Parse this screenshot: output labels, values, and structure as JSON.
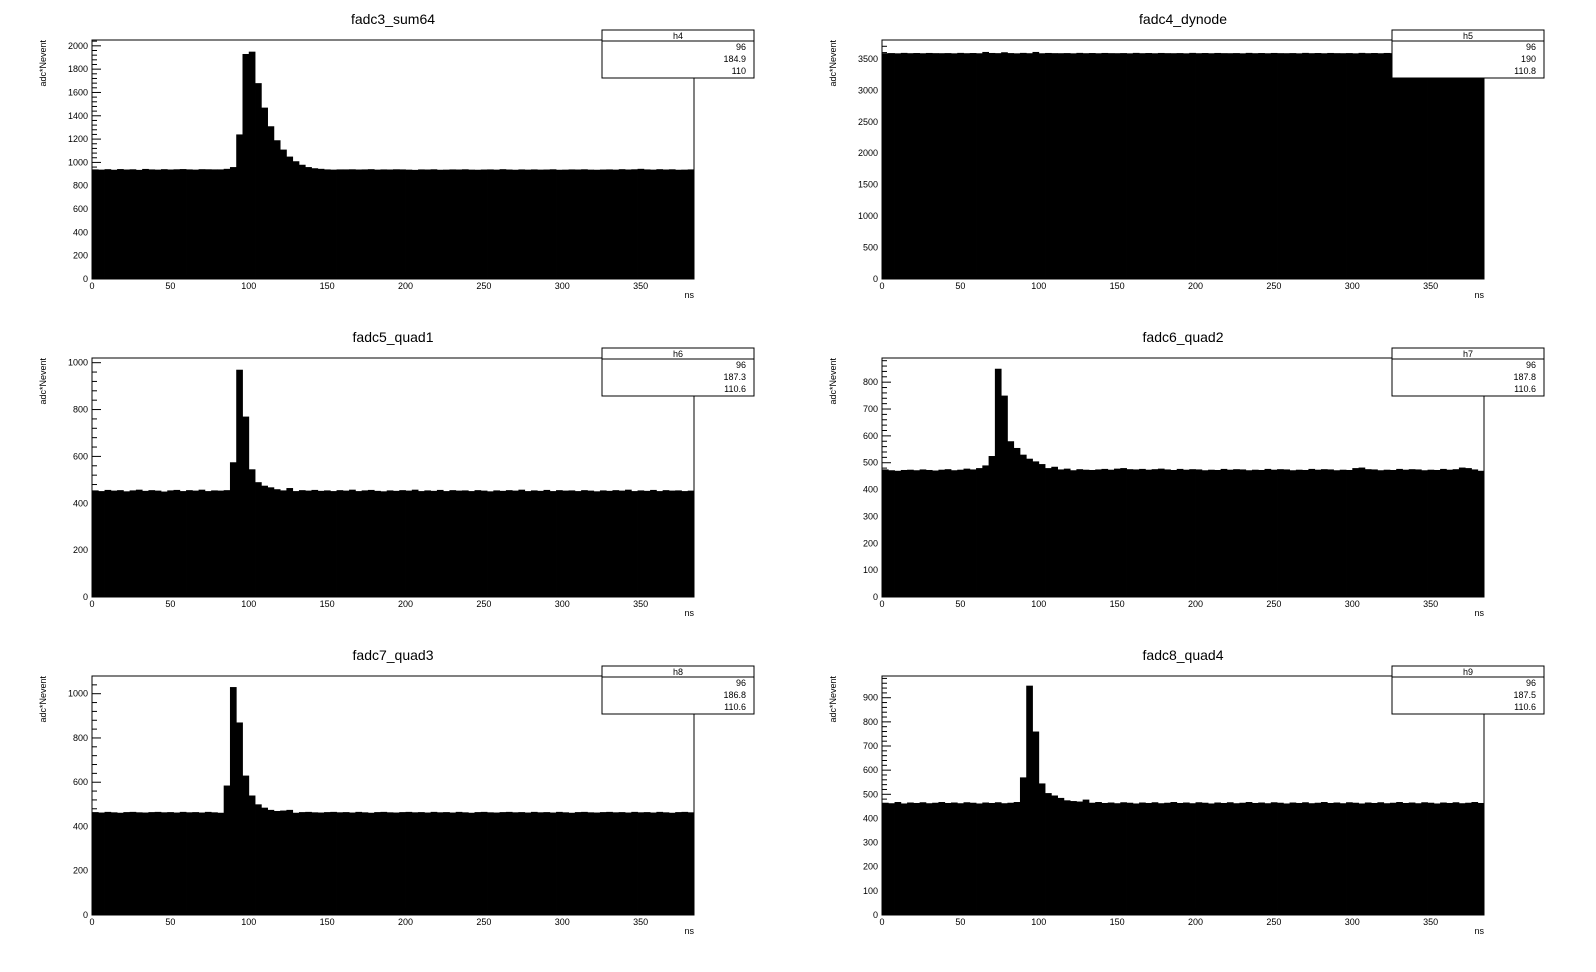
{
  "colors": {
    "fill": "#000000",
    "frame": "#000000",
    "background": "#ffffff"
  },
  "chart_data": [
    {
      "type": "bar",
      "title": "fadc3_sum64",
      "xlabel": "ns",
      "ylabel": "adc*Nevent",
      "xlim": [
        0,
        384
      ],
      "ylim": [
        0,
        2050
      ],
      "xticks": [
        0,
        50,
        100,
        150,
        200,
        250,
        300,
        350
      ],
      "yticks": [
        0,
        200,
        400,
        600,
        800,
        1000,
        1200,
        1400,
        1600,
        1800,
        2000
      ],
      "bin_width": 4,
      "stats": {
        "name": "h4",
        "entries": "96",
        "mean": "184.9",
        "std_dev": "110"
      },
      "values": [
        940,
        938,
        942,
        937,
        943,
        939,
        941,
        936,
        944,
        940,
        938,
        942,
        939,
        941,
        943,
        940,
        938,
        942,
        941,
        940,
        940,
        945,
        960,
        1240,
        1930,
        1950,
        1680,
        1470,
        1310,
        1190,
        1110,
        1050,
        1010,
        980,
        960,
        950,
        945,
        940,
        938,
        940,
        940,
        941,
        939,
        940,
        942,
        938,
        940,
        939,
        941,
        940,
        938,
        936,
        940,
        939,
        941,
        937,
        938,
        940,
        939,
        941,
        938,
        937,
        939,
        940,
        938,
        942,
        939,
        937,
        940,
        938,
        940,
        938,
        939,
        941,
        937,
        938,
        940,
        939,
        941,
        938,
        937,
        939,
        940,
        938,
        942,
        939,
        941,
        945,
        940,
        938,
        942,
        939,
        941,
        937,
        938,
        940
      ]
    },
    {
      "type": "bar",
      "title": "fadc4_dynode",
      "xlabel": "ns",
      "ylabel": "adc*Nevent",
      "xlim": [
        0,
        384
      ],
      "ylim": [
        0,
        3800
      ],
      "xticks": [
        0,
        50,
        100,
        150,
        200,
        250,
        300,
        350
      ],
      "yticks": [
        0,
        500,
        1000,
        1500,
        2000,
        2500,
        3000,
        3500
      ],
      "bin_width": 4,
      "stats": {
        "name": "h5",
        "entries": "96",
        "mean": "190",
        "std_dev": "110.8"
      },
      "values": [
        3590,
        3592,
        3588,
        3595,
        3590,
        3593,
        3589,
        3594,
        3591,
        3590,
        3592,
        3588,
        3595,
        3590,
        3593,
        3589,
        3610,
        3594,
        3591,
        3605,
        3592,
        3588,
        3595,
        3590,
        3610,
        3589,
        3594,
        3591,
        3590,
        3592,
        3588,
        3595,
        3590,
        3593,
        3589,
        3594,
        3591,
        3590,
        3592,
        3588,
        3595,
        3590,
        3593,
        3589,
        3594,
        3591,
        3590,
        3592,
        3588,
        3595,
        3590,
        3593,
        3589,
        3594,
        3591,
        3590,
        3592,
        3588,
        3595,
        3590,
        3593,
        3589,
        3594,
        3591,
        3590,
        3592,
        3588,
        3595,
        3590,
        3593,
        3589,
        3594,
        3591,
        3590,
        3592,
        3588,
        3595,
        3590,
        3593,
        3589,
        3594,
        3591,
        3590,
        3592,
        3588,
        3595,
        3590,
        3593,
        3589,
        3594,
        3591,
        3590,
        3592,
        3588,
        3595,
        3590
      ]
    },
    {
      "type": "bar",
      "title": "fadc5_quad1",
      "xlabel": "ns",
      "ylabel": "adc*Nevent",
      "xlim": [
        0,
        384
      ],
      "ylim": [
        0,
        1020
      ],
      "xticks": [
        0,
        50,
        100,
        150,
        200,
        250,
        300,
        350
      ],
      "yticks": [
        0,
        200,
        400,
        600,
        800,
        1000
      ],
      "bin_width": 4,
      "stats": {
        "name": "h6",
        "entries": "96",
        "mean": "187.3",
        "std_dev": "110.6"
      },
      "values": [
        455,
        452,
        457,
        454,
        456,
        451,
        455,
        458,
        453,
        456,
        454,
        450,
        455,
        457,
        452,
        456,
        454,
        458,
        452,
        455,
        454,
        456,
        575,
        970,
        770,
        545,
        490,
        475,
        468,
        460,
        455,
        465,
        452,
        456,
        454,
        457,
        453,
        455,
        452,
        456,
        454,
        458,
        452,
        455,
        457,
        453,
        451,
        455,
        453,
        456,
        454,
        458,
        452,
        455,
        453,
        457,
        452,
        456,
        454,
        455,
        452,
        456,
        454,
        451,
        455,
        453,
        456,
        454,
        458,
        452,
        455,
        453,
        457,
        452,
        456,
        454,
        455,
        452,
        456,
        454,
        451,
        455,
        453,
        456,
        454,
        458,
        452,
        455,
        453,
        457,
        452,
        456,
        454,
        455,
        452,
        454
      ]
    },
    {
      "type": "bar",
      "title": "fadc6_quad2",
      "xlabel": "ns",
      "ylabel": "adc*Nevent",
      "xlim": [
        0,
        384
      ],
      "ylim": [
        0,
        890
      ],
      "xticks": [
        0,
        50,
        100,
        150,
        200,
        250,
        300,
        350
      ],
      "yticks": [
        0,
        100,
        200,
        300,
        400,
        500,
        600,
        700,
        800
      ],
      "bin_width": 4,
      "stats": {
        "name": "h7",
        "entries": "96",
        "mean": "187.8",
        "std_dev": "110.6"
      },
      "values": [
        475,
        472,
        470,
        473,
        474,
        472,
        475,
        473,
        471,
        474,
        476,
        472,
        474,
        478,
        475,
        480,
        490,
        525,
        850,
        750,
        580,
        555,
        530,
        515,
        505,
        495,
        480,
        485,
        475,
        478,
        472,
        476,
        474,
        473,
        475,
        477,
        474,
        478,
        480,
        476,
        475,
        477,
        474,
        476,
        478,
        475,
        473,
        477,
        474,
        476,
        475,
        472,
        474,
        473,
        477,
        474,
        476,
        475,
        472,
        474,
        473,
        477,
        474,
        476,
        475,
        472,
        474,
        473,
        477,
        474,
        476,
        475,
        472,
        474,
        473,
        480,
        482,
        476,
        475,
        472,
        474,
        473,
        477,
        474,
        476,
        475,
        472,
        474,
        473,
        477,
        474,
        476,
        482,
        480,
        475,
        470
      ]
    },
    {
      "type": "bar",
      "title": "fadc7_quad3",
      "xlabel": "ns",
      "ylabel": "adc*Nevent",
      "xlim": [
        0,
        384
      ],
      "ylim": [
        0,
        1080
      ],
      "xticks": [
        0,
        50,
        100,
        150,
        200,
        250,
        300,
        350
      ],
      "yticks": [
        0,
        200,
        400,
        600,
        800,
        1000
      ],
      "bin_width": 4,
      "stats": {
        "name": "h8",
        "entries": "96",
        "mean": "186.8",
        "std_dev": "110.6"
      },
      "values": [
        465,
        463,
        466,
        464,
        462,
        465,
        466,
        464,
        463,
        465,
        466,
        464,
        465,
        463,
        466,
        464,
        465,
        463,
        466,
        464,
        462,
        585,
        1030,
        870,
        630,
        540,
        500,
        485,
        475,
        470,
        472,
        475,
        462,
        465,
        466,
        464,
        463,
        465,
        466,
        464,
        465,
        463,
        466,
        464,
        462,
        465,
        466,
        464,
        463,
        465,
        466,
        464,
        465,
        463,
        466,
        464,
        465,
        463,
        466,
        464,
        462,
        465,
        466,
        464,
        463,
        465,
        466,
        464,
        465,
        463,
        466,
        464,
        465,
        463,
        466,
        464,
        462,
        465,
        466,
        464,
        463,
        465,
        466,
        464,
        465,
        463,
        466,
        464,
        465,
        463,
        466,
        464,
        462,
        465,
        466,
        464
      ]
    },
    {
      "type": "bar",
      "title": "fadc8_quad4",
      "xlabel": "ns",
      "ylabel": "adc*Nevent",
      "xlim": [
        0,
        384
      ],
      "ylim": [
        0,
        990
      ],
      "xticks": [
        0,
        50,
        100,
        150,
        200,
        250,
        300,
        350
      ],
      "yticks": [
        0,
        100,
        200,
        300,
        400,
        500,
        600,
        700,
        800,
        900
      ],
      "bin_width": 4,
      "stats": {
        "name": "h9",
        "entries": "96",
        "mean": "187.5",
        "std_dev": "110.6"
      },
      "values": [
        465,
        463,
        468,
        462,
        466,
        464,
        467,
        463,
        465,
        468,
        464,
        466,
        463,
        467,
        465,
        462,
        466,
        464,
        467,
        463,
        465,
        468,
        570,
        950,
        760,
        545,
        505,
        495,
        485,
        475,
        472,
        470,
        478,
        465,
        468,
        464,
        466,
        463,
        467,
        465,
        462,
        466,
        464,
        467,
        463,
        465,
        468,
        464,
        466,
        463,
        467,
        465,
        462,
        466,
        464,
        467,
        463,
        465,
        468,
        464,
        466,
        463,
        467,
        465,
        462,
        466,
        464,
        467,
        463,
        465,
        468,
        464,
        466,
        463,
        467,
        465,
        462,
        466,
        464,
        467,
        463,
        465,
        468,
        464,
        466,
        463,
        467,
        465,
        462,
        466,
        464,
        467,
        463,
        465,
        468,
        464
      ]
    }
  ]
}
